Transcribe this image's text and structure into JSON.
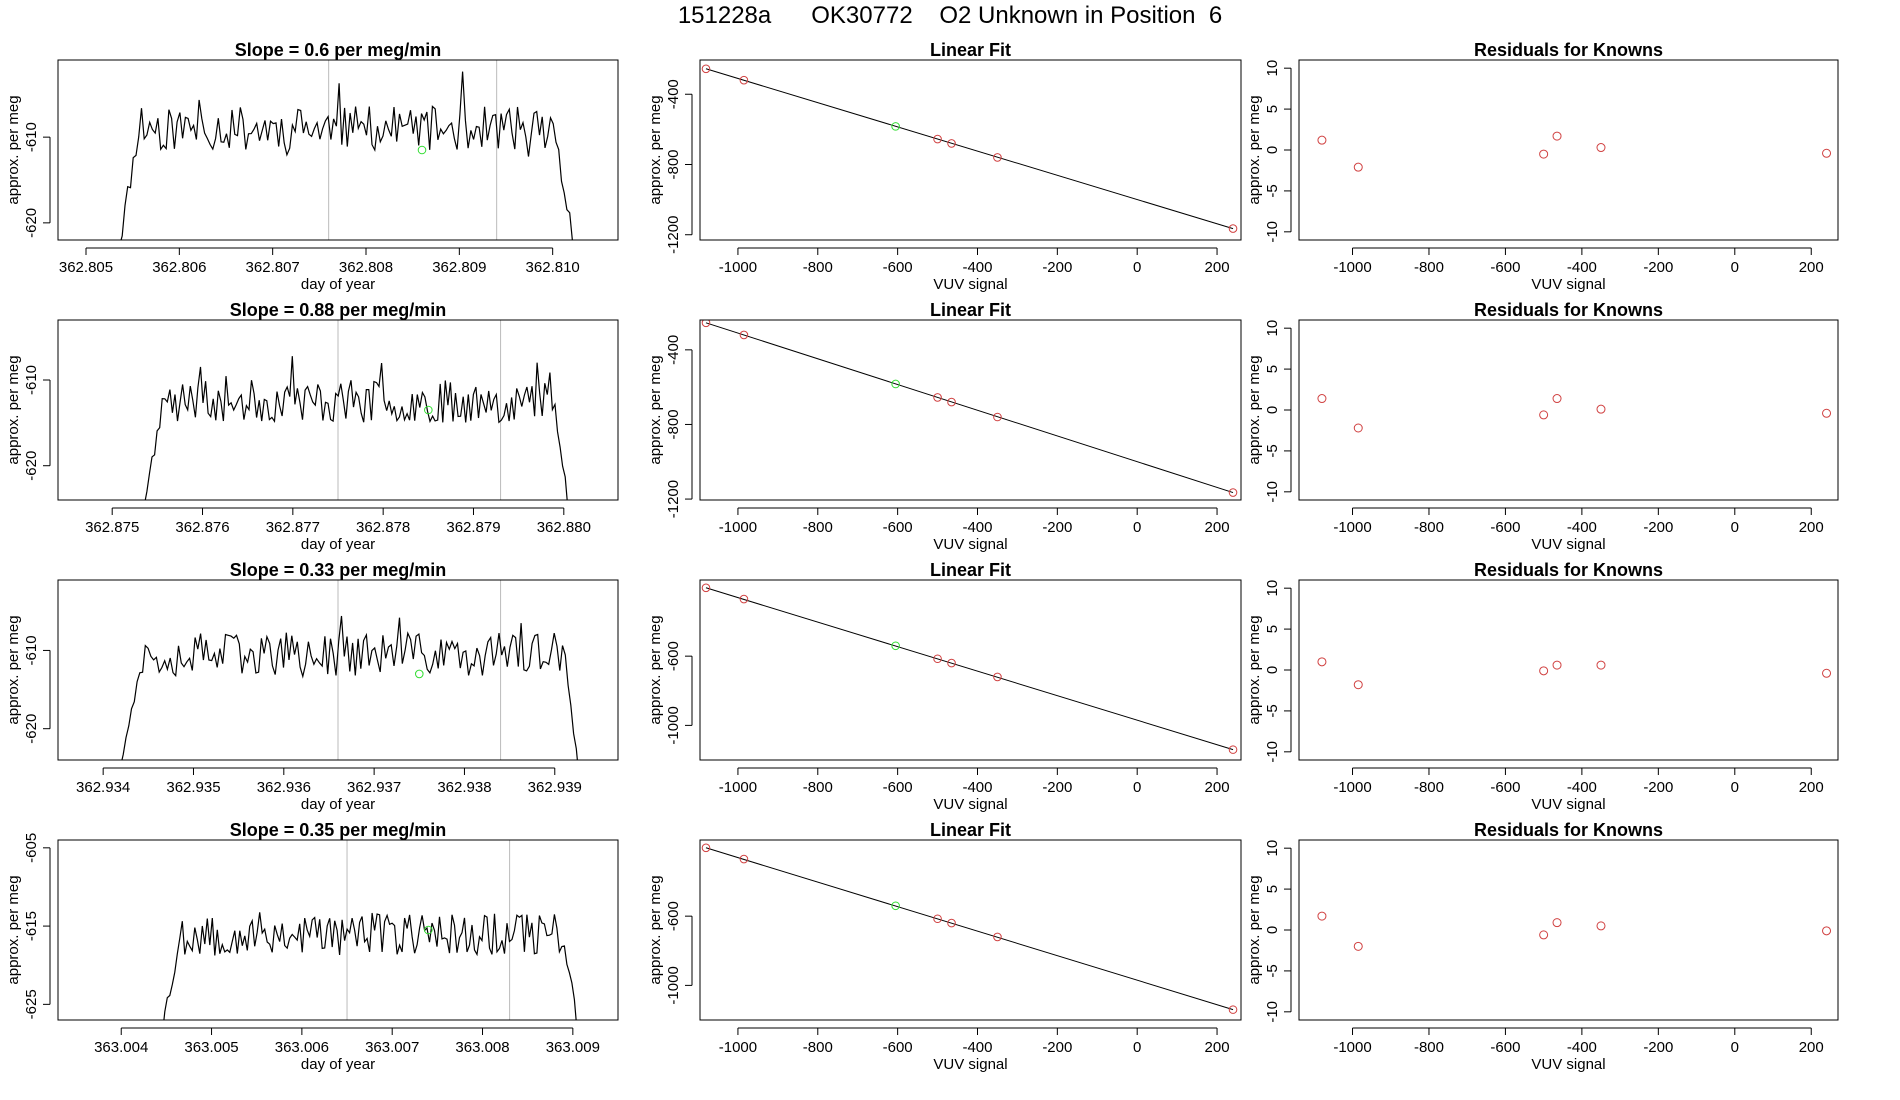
{
  "page_title": "151228a      OK30772    O2 Unknown in Position  6",
  "colors": {
    "line": "#000000",
    "known": "#d04040",
    "unknown": "#33dd33",
    "marker": "#bbbbbb",
    "frame": "#000000"
  },
  "chart_data": [
    {
      "type": "line",
      "panel": "timeseries",
      "row": 0,
      "title": "Slope =  0.6  per meg/min",
      "xlabel": "day of year",
      "ylabel": "approx. per meg",
      "xlim": [
        362.8047,
        362.8107
      ],
      "ylim": [
        -622,
        -601
      ],
      "xticks": [
        362.805,
        362.806,
        362.807,
        362.808,
        362.809,
        362.81
      ],
      "xtick_labels": [
        "362.805",
        "362.806",
        "362.807",
        "362.808",
        "362.809",
        "362.810"
      ],
      "yticks": [
        -610,
        -620
      ],
      "ytick_labels": [
        "-610",
        "-620"
      ],
      "x_start": 362.8053,
      "x_end": 362.8103,
      "plateau_start": 362.8056,
      "plateau_end": 362.81,
      "base_level": -609.0,
      "amplitude": 2.6,
      "seed": 11,
      "vlines": [
        362.8076,
        362.8094
      ],
      "unknown_point": {
        "x": 362.8086,
        "y": -611.5
      }
    },
    {
      "type": "scatter",
      "panel": "linear_fit",
      "row": 0,
      "title": "Linear Fit",
      "xlabel": "VUV signal",
      "ylabel": "approx. per meg",
      "xlim": [
        -1095,
        260
      ],
      "ylim": [
        -1230,
        -205
      ],
      "xticks": [
        -1000,
        -800,
        -600,
        -400,
        -200,
        0,
        200
      ],
      "xtick_labels": [
        "-1000",
        "-800",
        "-600",
        "-400",
        "-200",
        "0",
        "200"
      ],
      "yticks": [
        -400,
        -800,
        -1200
      ],
      "ytick_labels": [
        "-400",
        "-800",
        "-1200"
      ],
      "fit_line": {
        "x": [
          -1080,
          240
        ],
        "y": [
          -255,
          -1165
        ]
      },
      "knowns": {
        "x": [
          -1080,
          -985,
          -500,
          -465,
          -350,
          240
        ],
        "y": [
          -255,
          -320,
          -655,
          -680,
          -760,
          -1165
        ]
      },
      "unknown": {
        "x": -605,
        "y": -583
      }
    },
    {
      "type": "scatter",
      "panel": "residuals",
      "row": 0,
      "title": "Residuals for Knowns",
      "xlabel": "VUV signal",
      "ylabel": "approx. per meg",
      "xlim": [
        -1140,
        270
      ],
      "ylim": [
        -11,
        11
      ],
      "xticks": [
        -1000,
        -800,
        -600,
        -400,
        -200,
        0,
        200
      ],
      "xtick_labels": [
        "-1000",
        "-800",
        "-600",
        "-400",
        "-200",
        "0",
        "200"
      ],
      "yticks": [
        10,
        5,
        0,
        -5,
        -10
      ],
      "ytick_labels": [
        "10",
        "5",
        "0",
        "-5",
        "-10"
      ],
      "points": {
        "x": [
          -1080,
          -985,
          -500,
          -465,
          -350,
          240
        ],
        "y": [
          1.2,
          -2.1,
          -0.5,
          1.7,
          0.3,
          -0.4
        ]
      }
    },
    {
      "type": "line",
      "panel": "timeseries",
      "row": 1,
      "title": "Slope =  0.88  per meg/min",
      "xlabel": "day of year",
      "ylabel": "approx. per meg",
      "xlim": [
        362.8744,
        362.8806
      ],
      "ylim": [
        -624,
        -603
      ],
      "xticks": [
        362.875,
        362.876,
        362.877,
        362.878,
        362.879,
        362.88
      ],
      "xtick_labels": [
        "362.875",
        "362.876",
        "362.877",
        "362.878",
        "362.879",
        "362.880"
      ],
      "yticks": [
        -610,
        -620
      ],
      "ytick_labels": [
        "-610",
        "-620"
      ],
      "x_start": 362.8753,
      "x_end": 362.8801,
      "plateau_start": 362.8756,
      "plateau_end": 362.8799,
      "base_level": -612.5,
      "amplitude": 2.5,
      "seed": 23,
      "vlines": [
        362.8775,
        362.8793
      ],
      "unknown_point": {
        "x": 362.8785,
        "y": -613.5
      }
    },
    {
      "type": "scatter",
      "panel": "linear_fit",
      "row": 1,
      "title": "Linear Fit",
      "xlabel": "VUV signal",
      "ylabel": "approx. per meg",
      "xlim": [
        -1095,
        260
      ],
      "ylim": [
        -1205,
        -240
      ],
      "xticks": [
        -1000,
        -800,
        -600,
        -400,
        -200,
        0,
        200
      ],
      "xtick_labels": [
        "-1000",
        "-800",
        "-600",
        "-400",
        "-200",
        "0",
        "200"
      ],
      "yticks": [
        -400,
        -800,
        -1200
      ],
      "ytick_labels": [
        "-400",
        "-800",
        "-1200"
      ],
      "fit_line": {
        "x": [
          -1080,
          240
        ],
        "y": [
          -255,
          -1165
        ]
      },
      "knowns": {
        "x": [
          -1080,
          -985,
          -500,
          -465,
          -350,
          240
        ],
        "y": [
          -255,
          -320,
          -655,
          -680,
          -760,
          -1165
        ]
      },
      "unknown": {
        "x": -605,
        "y": -583
      }
    },
    {
      "type": "scatter",
      "panel": "residuals",
      "row": 1,
      "title": "Residuals for Knowns",
      "xlabel": "VUV signal",
      "ylabel": "approx. per meg",
      "xlim": [
        -1140,
        270
      ],
      "ylim": [
        -11,
        11
      ],
      "xticks": [
        -1000,
        -800,
        -600,
        -400,
        -200,
        0,
        200
      ],
      "xtick_labels": [
        "-1000",
        "-800",
        "-600",
        "-400",
        "-200",
        "0",
        "200"
      ],
      "yticks": [
        10,
        5,
        0,
        -5,
        -10
      ],
      "ytick_labels": [
        "10",
        "5",
        "0",
        "-5",
        "-10"
      ],
      "points": {
        "x": [
          -1080,
          -985,
          -500,
          -465,
          -350,
          240
        ],
        "y": [
          1.4,
          -2.2,
          -0.6,
          1.4,
          0.1,
          -0.4
        ]
      }
    },
    {
      "type": "line",
      "panel": "timeseries",
      "row": 2,
      "title": "Slope =  0.33  per meg/min",
      "xlabel": "day of year",
      "ylabel": "approx. per meg",
      "xlim": [
        362.9335,
        362.9397
      ],
      "ylim": [
        -624,
        -601
      ],
      "xticks": [
        362.934,
        362.935,
        362.936,
        362.937,
        362.938,
        362.939
      ],
      "xtick_labels": [
        "362.934",
        "362.935",
        "362.936",
        "362.937",
        "362.938",
        "362.939"
      ],
      "yticks": [
        -610,
        -620
      ],
      "ytick_labels": [
        "-610",
        "-620"
      ],
      "x_start": 362.9341,
      "x_end": 362.9393,
      "plateau_start": 362.9345,
      "plateau_end": 362.9391,
      "base_level": -610.5,
      "amplitude": 2.8,
      "seed": 37,
      "vlines": [
        362.9366,
        362.9384
      ],
      "unknown_point": {
        "x": 362.9375,
        "y": -613
      }
    },
    {
      "type": "scatter",
      "panel": "linear_fit",
      "row": 2,
      "title": "Linear Fit",
      "xlabel": "VUV signal",
      "ylabel": "approx. per meg",
      "xlim": [
        -1095,
        260
      ],
      "ylim": [
        -1200,
        -160
      ],
      "xticks": [
        -1000,
        -800,
        -600,
        -400,
        -200,
        0,
        200
      ],
      "xtick_labels": [
        "-1000",
        "-800",
        "-600",
        "-400",
        "-200",
        "0",
        "200"
      ],
      "yticks": [
        -600,
        -1000
      ],
      "ytick_labels": [
        "-600",
        "-1000"
      ],
      "fit_line": {
        "x": [
          -1080,
          240
        ],
        "y": [
          -205,
          -1140
        ]
      },
      "knowns": {
        "x": [
          -1080,
          -985,
          -500,
          -465,
          -350,
          240
        ],
        "y": [
          -205,
          -270,
          -615,
          -640,
          -720,
          -1140
        ]
      },
      "unknown": {
        "x": -605,
        "y": -540
      }
    },
    {
      "type": "scatter",
      "panel": "residuals",
      "row": 2,
      "title": "Residuals for Knowns",
      "xlabel": "VUV signal",
      "ylabel": "approx. per meg",
      "xlim": [
        -1140,
        270
      ],
      "ylim": [
        -11,
        11
      ],
      "xticks": [
        -1000,
        -800,
        -600,
        -400,
        -200,
        0,
        200
      ],
      "xtick_labels": [
        "-1000",
        "-800",
        "-600",
        "-400",
        "-200",
        "0",
        "200"
      ],
      "yticks": [
        10,
        5,
        0,
        -5,
        -10
      ],
      "ytick_labels": [
        "10",
        "5",
        "0",
        "-5",
        "-10"
      ],
      "points": {
        "x": [
          -1080,
          -985,
          -500,
          -465,
          -350,
          240
        ],
        "y": [
          1.0,
          -1.8,
          -0.1,
          0.6,
          0.6,
          -0.4
        ]
      }
    },
    {
      "type": "line",
      "panel": "timeseries",
      "row": 3,
      "title": "Slope =  0.35  per meg/min",
      "xlabel": "day of year",
      "ylabel": "approx. per meg",
      "xlim": [
        363.0033,
        363.0095
      ],
      "ylim": [
        -627,
        -604
      ],
      "xticks": [
        363.004,
        363.005,
        363.006,
        363.007,
        363.008,
        363.009
      ],
      "xtick_labels": [
        "363.004",
        "363.005",
        "363.006",
        "363.007",
        "363.008",
        "363.009"
      ],
      "yticks": [
        -605,
        -615,
        -625
      ],
      "ytick_labels": [
        "-605",
        "-615",
        "-625"
      ],
      "x_start": 363.0044,
      "x_end": 363.0091,
      "plateau_start": 363.0047,
      "plateau_end": 363.0089,
      "base_level": -616.0,
      "amplitude": 2.8,
      "seed": 53,
      "vlines": [
        363.0065,
        363.0083
      ],
      "unknown_point": {
        "x": 363.0074,
        "y": -615.5
      }
    },
    {
      "type": "scatter",
      "panel": "linear_fit",
      "row": 3,
      "title": "Linear Fit",
      "xlabel": "VUV signal",
      "ylabel": "approx. per meg",
      "xlim": [
        -1095,
        260
      ],
      "ylim": [
        -1200,
        -160
      ],
      "xticks": [
        -1000,
        -800,
        -600,
        -400,
        -200,
        0,
        200
      ],
      "xtick_labels": [
        "-1000",
        "-800",
        "-600",
        "-400",
        "-200",
        "0",
        "200"
      ],
      "yticks": [
        -600,
        -1000
      ],
      "ytick_labels": [
        "-600",
        "-1000"
      ],
      "fit_line": {
        "x": [
          -1080,
          240
        ],
        "y": [
          -205,
          -1140
        ]
      },
      "knowns": {
        "x": [
          -1080,
          -985,
          -500,
          -465,
          -350,
          240
        ],
        "y": [
          -205,
          -270,
          -615,
          -640,
          -720,
          -1140
        ]
      },
      "unknown": {
        "x": -605,
        "y": -540
      }
    },
    {
      "type": "scatter",
      "panel": "residuals",
      "row": 3,
      "title": "Residuals for Knowns",
      "xlabel": "VUV signal",
      "ylabel": "approx. per meg",
      "xlim": [
        -1140,
        270
      ],
      "ylim": [
        -11,
        11
      ],
      "xticks": [
        -1000,
        -800,
        -600,
        -400,
        -200,
        0,
        200
      ],
      "xtick_labels": [
        "-1000",
        "-800",
        "-600",
        "-400",
        "-200",
        "0",
        "200"
      ],
      "yticks": [
        10,
        5,
        0,
        -5,
        -10
      ],
      "ytick_labels": [
        "10",
        "5",
        "0",
        "-5",
        "-10"
      ],
      "points": {
        "x": [
          -1080,
          -985,
          -500,
          -465,
          -350,
          240
        ],
        "y": [
          1.7,
          -2.0,
          -0.6,
          0.9,
          0.5,
          -0.1
        ]
      }
    }
  ]
}
